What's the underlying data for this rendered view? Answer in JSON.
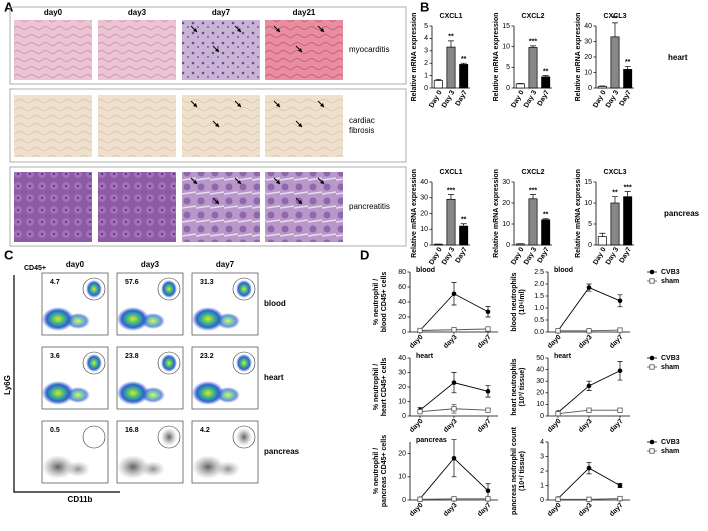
{
  "panel_a": {
    "label": "A",
    "columns": [
      "day0",
      "day3",
      "day7",
      "day21"
    ],
    "rows": [
      [
        "myocarditis"
      ],
      [
        "cardiac",
        "fibrosis"
      ],
      [
        "pancreatitis"
      ]
    ]
  },
  "panel_b": {
    "label": "B",
    "tissues": [
      "heart",
      "pancreas"
    ]
  },
  "panel_c": {
    "label": "C",
    "gate": "CD45+",
    "columns": [
      "day0",
      "day3",
      "day7"
    ],
    "rows": [
      "blood",
      "heart",
      "pancreas"
    ],
    "percentages": [
      [
        "4.7",
        "57.6",
        "31.3"
      ],
      [
        "3.6",
        "23.8",
        "23.2"
      ],
      [
        "0.5",
        "16.8",
        "4.2"
      ]
    ],
    "y_axis": "Ly6G",
    "x_axis": "CD11b"
  },
  "panel_d": {
    "label": "D"
  },
  "chart_data": [
    {
      "type": "bar",
      "title": "CXCL1",
      "y_label": [
        "Relative mRNA expression"
      ],
      "categories": [
        "Day 0",
        "Day 3",
        "Day7"
      ],
      "colors": [
        "#ffffff",
        "#888888",
        "#000000"
      ],
      "values": [
        0.6,
        3.3,
        1.9
      ],
      "errors": [
        0.1,
        0.5,
        0.1
      ],
      "significance": [
        null,
        "**",
        "**"
      ],
      "ylim": [
        0,
        5
      ],
      "yticks": [
        0,
        1,
        2,
        3,
        4,
        5
      ]
    },
    {
      "type": "bar",
      "title": "CXCL2",
      "y_label": [
        "Relative mRNA expression"
      ],
      "categories": [
        "Day 0",
        "Day 3",
        "Day7"
      ],
      "colors": [
        "#ffffff",
        "#888888",
        "#000000"
      ],
      "values": [
        1,
        9.8,
        2.7
      ],
      "errors": [
        0.1,
        0.4,
        0.3
      ],
      "significance": [
        null,
        "***",
        "**"
      ],
      "ylim": [
        0,
        15
      ],
      "yticks": [
        0,
        5,
        10,
        15
      ]
    },
    {
      "type": "bar",
      "title": "CXCL3",
      "y_label": [
        "Relative mRNA expression"
      ],
      "categories": [
        "Day 0",
        "Day 3",
        "Day7"
      ],
      "colors": [
        "#ffffff",
        "#888888",
        "#000000"
      ],
      "values": [
        1,
        33,
        12
      ],
      "errors": [
        0.3,
        9,
        2
      ],
      "significance": [
        null,
        "**",
        "**"
      ],
      "ylim": [
        0,
        40
      ],
      "yticks": [
        0,
        10,
        20,
        30,
        40
      ]
    },
    {
      "type": "bar",
      "title": "CXCL1",
      "y_label": [
        "Relative mRNA expression"
      ],
      "categories": [
        "Day 0",
        "Day 3",
        "Day7"
      ],
      "colors": [
        "#ffffff",
        "#888888",
        "#000000"
      ],
      "values": [
        0.5,
        29,
        12
      ],
      "errors": [
        0.1,
        3,
        1.5
      ],
      "significance": [
        null,
        "***",
        "**"
      ],
      "ylim": [
        0,
        40
      ],
      "yticks": [
        0,
        10,
        20,
        30,
        40
      ]
    },
    {
      "type": "bar",
      "title": "CXCL2",
      "y_label": [
        "Relative mRNA expression"
      ],
      "categories": [
        "Day 0",
        "Day 3",
        "Day7"
      ],
      "colors": [
        "#ffffff",
        "#888888",
        "#000000"
      ],
      "values": [
        0.5,
        22,
        12
      ],
      "errors": [
        0.1,
        2,
        0.5
      ],
      "significance": [
        null,
        "***",
        "**"
      ],
      "ylim": [
        0,
        30
      ],
      "yticks": [
        0,
        10,
        20,
        30
      ]
    },
    {
      "type": "bar",
      "title": "CXCL3",
      "y_label": [
        "Relative mRNA expression"
      ],
      "categories": [
        "Day 0",
        "Day 3",
        "Day7"
      ],
      "colors": [
        "#ffffff",
        "#888888",
        "#000000"
      ],
      "values": [
        2,
        10,
        11.5
      ],
      "errors": [
        0.8,
        1.5,
        1.2
      ],
      "significance": [
        null,
        "**",
        "***"
      ],
      "ylim": [
        0,
        15
      ],
      "yticks": [
        0,
        5,
        10,
        15
      ]
    },
    {
      "type": "line",
      "title": "blood",
      "y_label": [
        "% neutrophil /",
        "blood CD45+ cells"
      ],
      "categories": [
        "day0",
        "day3",
        "day7"
      ],
      "ylim": [
        0,
        80
      ],
      "yticks": [
        0,
        20,
        40,
        60,
        80
      ],
      "series": [
        {
          "name": "CVB3",
          "color": "#000000",
          "marker": "circle",
          "values": [
            2,
            51,
            27
          ],
          "errors": [
            1,
            15,
            7
          ]
        },
        {
          "name": "sham",
          "color": "#555555",
          "marker": "square",
          "values": [
            2,
            3,
            4
          ],
          "errors": [
            1,
            1,
            1
          ]
        }
      ]
    },
    {
      "type": "line",
      "title": "blood",
      "y_label": [
        "blood neutrophils",
        "(10⁶/ml)"
      ],
      "categories": [
        "day0",
        "day3",
        "day7"
      ],
      "ylim": [
        0,
        2.5
      ],
      "yticks": [
        {
          "value": 0,
          "label": "0.0"
        },
        0.5,
        {
          "value": 1,
          "label": "1.0"
        },
        1.5,
        {
          "value": 2,
          "label": "2.0"
        },
        2.5
      ],
      "legend": "right",
      "series": [
        {
          "name": "CVB3",
          "color": "#000000",
          "marker": "circle",
          "values": [
            0.05,
            1.85,
            1.3
          ],
          "errors": [
            0.03,
            0.15,
            0.25
          ]
        },
        {
          "name": "sham",
          "color": "#555555",
          "marker": "square",
          "values": [
            0.05,
            0.05,
            0.08
          ],
          "errors": [
            0.02,
            0.02,
            0.02
          ]
        }
      ]
    },
    {
      "type": "line",
      "title": "heart",
      "y_label": [
        "% neutrophil /",
        "heart CD45+ cells"
      ],
      "categories": [
        "day0",
        "day3",
        "day7"
      ],
      "ylim": [
        0,
        40
      ],
      "yticks": [
        0,
        10,
        20,
        30,
        40
      ],
      "series": [
        {
          "name": "CVB3",
          "color": "#000000",
          "marker": "circle",
          "values": [
            4,
            23,
            17
          ],
          "errors": [
            2,
            7,
            4
          ]
        },
        {
          "name": "sham",
          "color": "#555555",
          "marker": "square",
          "values": [
            3,
            5,
            4
          ],
          "errors": [
            1,
            3,
            1
          ]
        }
      ]
    },
    {
      "type": "line",
      "title": "heart",
      "y_label": [
        "heart neutrophils",
        "(10³/ tissue)"
      ],
      "categories": [
        "day0",
        "day3",
        "day7"
      ],
      "ylim": [
        0,
        50
      ],
      "yticks": [
        0,
        10,
        20,
        30,
        40,
        50
      ],
      "legend": "right",
      "series": [
        {
          "name": "CVB3",
          "color": "#000000",
          "marker": "circle",
          "values": [
            3,
            26,
            39
          ],
          "errors": [
            1,
            4,
            8
          ]
        },
        {
          "name": "sham",
          "color": "#555555",
          "marker": "square",
          "values": [
            2,
            5,
            5
          ],
          "errors": [
            1,
            1,
            1
          ]
        }
      ]
    },
    {
      "type": "line",
      "title": "pancreas",
      "y_label": [
        "% neutrophil /",
        "pancreas CD45+ cells"
      ],
      "categories": [
        "day0",
        "day3",
        "day7"
      ],
      "ylim": [
        0,
        25
      ],
      "yticks": [
        0,
        10,
        20
      ],
      "series": [
        {
          "name": "CVB3",
          "color": "#000000",
          "marker": "circle",
          "values": [
            0.5,
            18,
            4
          ],
          "errors": [
            0.3,
            8,
            3
          ]
        },
        {
          "name": "sham",
          "color": "#555555",
          "marker": "square",
          "values": [
            0.3,
            0.5,
            0.5
          ],
          "errors": [
            0.2,
            0.2,
            0.2
          ]
        }
      ]
    },
    {
      "type": "line",
      "y_label": [
        "pancreas neutrophil count",
        "(10⁴/ tissue)"
      ],
      "categories": [
        "day0",
        "day3",
        "day7"
      ],
      "ylim": [
        0,
        4
      ],
      "yticks": [
        0,
        1,
        2,
        3,
        4
      ],
      "legend": "right",
      "series": [
        {
          "name": "CVB3",
          "color": "#000000",
          "marker": "circle",
          "values": [
            0.1,
            2.2,
            1.0
          ],
          "errors": [
            0.05,
            0.4,
            0.15
          ]
        },
        {
          "name": "sham",
          "color": "#555555",
          "marker": "square",
          "values": [
            0.05,
            0.05,
            0.1
          ],
          "errors": [
            0.02,
            0.02,
            0.03
          ]
        }
      ]
    }
  ]
}
